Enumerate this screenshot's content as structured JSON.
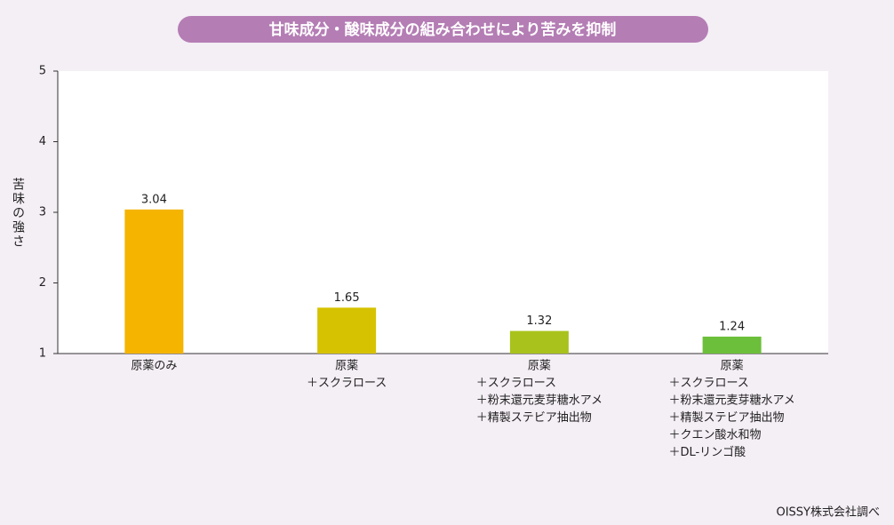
{
  "chart_data": {
    "type": "bar",
    "title": "甘味成分・酸味成分の組み合わせにより苦みを抑制",
    "ylabel": "苦味の強さ",
    "categories": [
      [
        "原薬のみ"
      ],
      [
        "原薬",
        "＋スクラロース"
      ],
      [
        "原薬",
        "＋スクラロース",
        "＋粉末還元麦芽糖水アメ",
        "＋精製ステビア抽出物"
      ],
      [
        "原薬",
        "＋スクラロース",
        "＋粉末還元麦芽糖水アメ",
        "＋精製ステビア抽出物",
        "＋クエン酸水和物",
        "＋DL-リンゴ酸"
      ]
    ],
    "values": [
      3.04,
      1.65,
      1.32,
      1.24
    ],
    "colors": [
      "#f5b400",
      "#d6c200",
      "#a9c21c",
      "#6cbf3a"
    ],
    "ylim": [
      1,
      5
    ],
    "yticks": [
      1,
      2,
      3,
      4,
      5
    ],
    "grid": false,
    "source": "OISSY株式会社調べ"
  }
}
